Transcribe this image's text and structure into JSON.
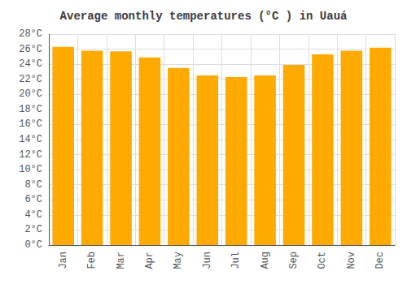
{
  "chart_data": {
    "type": "bar",
    "title": "Average monthly temperatures (°C ) in Uauá",
    "categories": [
      "Jan",
      "Feb",
      "Mar",
      "Apr",
      "May",
      "Jun",
      "Jul",
      "Aug",
      "Sep",
      "Oct",
      "Nov",
      "Dec"
    ],
    "values": [
      26.3,
      25.8,
      25.7,
      24.9,
      23.5,
      22.5,
      22.3,
      22.5,
      23.9,
      25.3,
      25.8,
      26.2
    ],
    "color": "#FFAA00",
    "ylim": [
      0,
      28
    ],
    "yticks": [
      {
        "value": 0,
        "label": "0°C"
      },
      {
        "value": 2,
        "label": "2°C"
      },
      {
        "value": 4,
        "label": "4°C"
      },
      {
        "value": 6,
        "label": "6°C"
      },
      {
        "value": 8,
        "label": "8°C"
      },
      {
        "value": 10,
        "label": "10°C"
      },
      {
        "value": 12,
        "label": "12°C"
      },
      {
        "value": 14,
        "label": "14°C"
      },
      {
        "value": 16,
        "label": "16°C"
      },
      {
        "value": 18,
        "label": "18°C"
      },
      {
        "value": 20,
        "label": "20°C"
      },
      {
        "value": 22,
        "label": "22°C"
      },
      {
        "value": 24,
        "label": "24°C"
      },
      {
        "value": 26,
        "label": "26°C"
      },
      {
        "value": 28,
        "label": "28°C"
      }
    ],
    "grid": true
  }
}
